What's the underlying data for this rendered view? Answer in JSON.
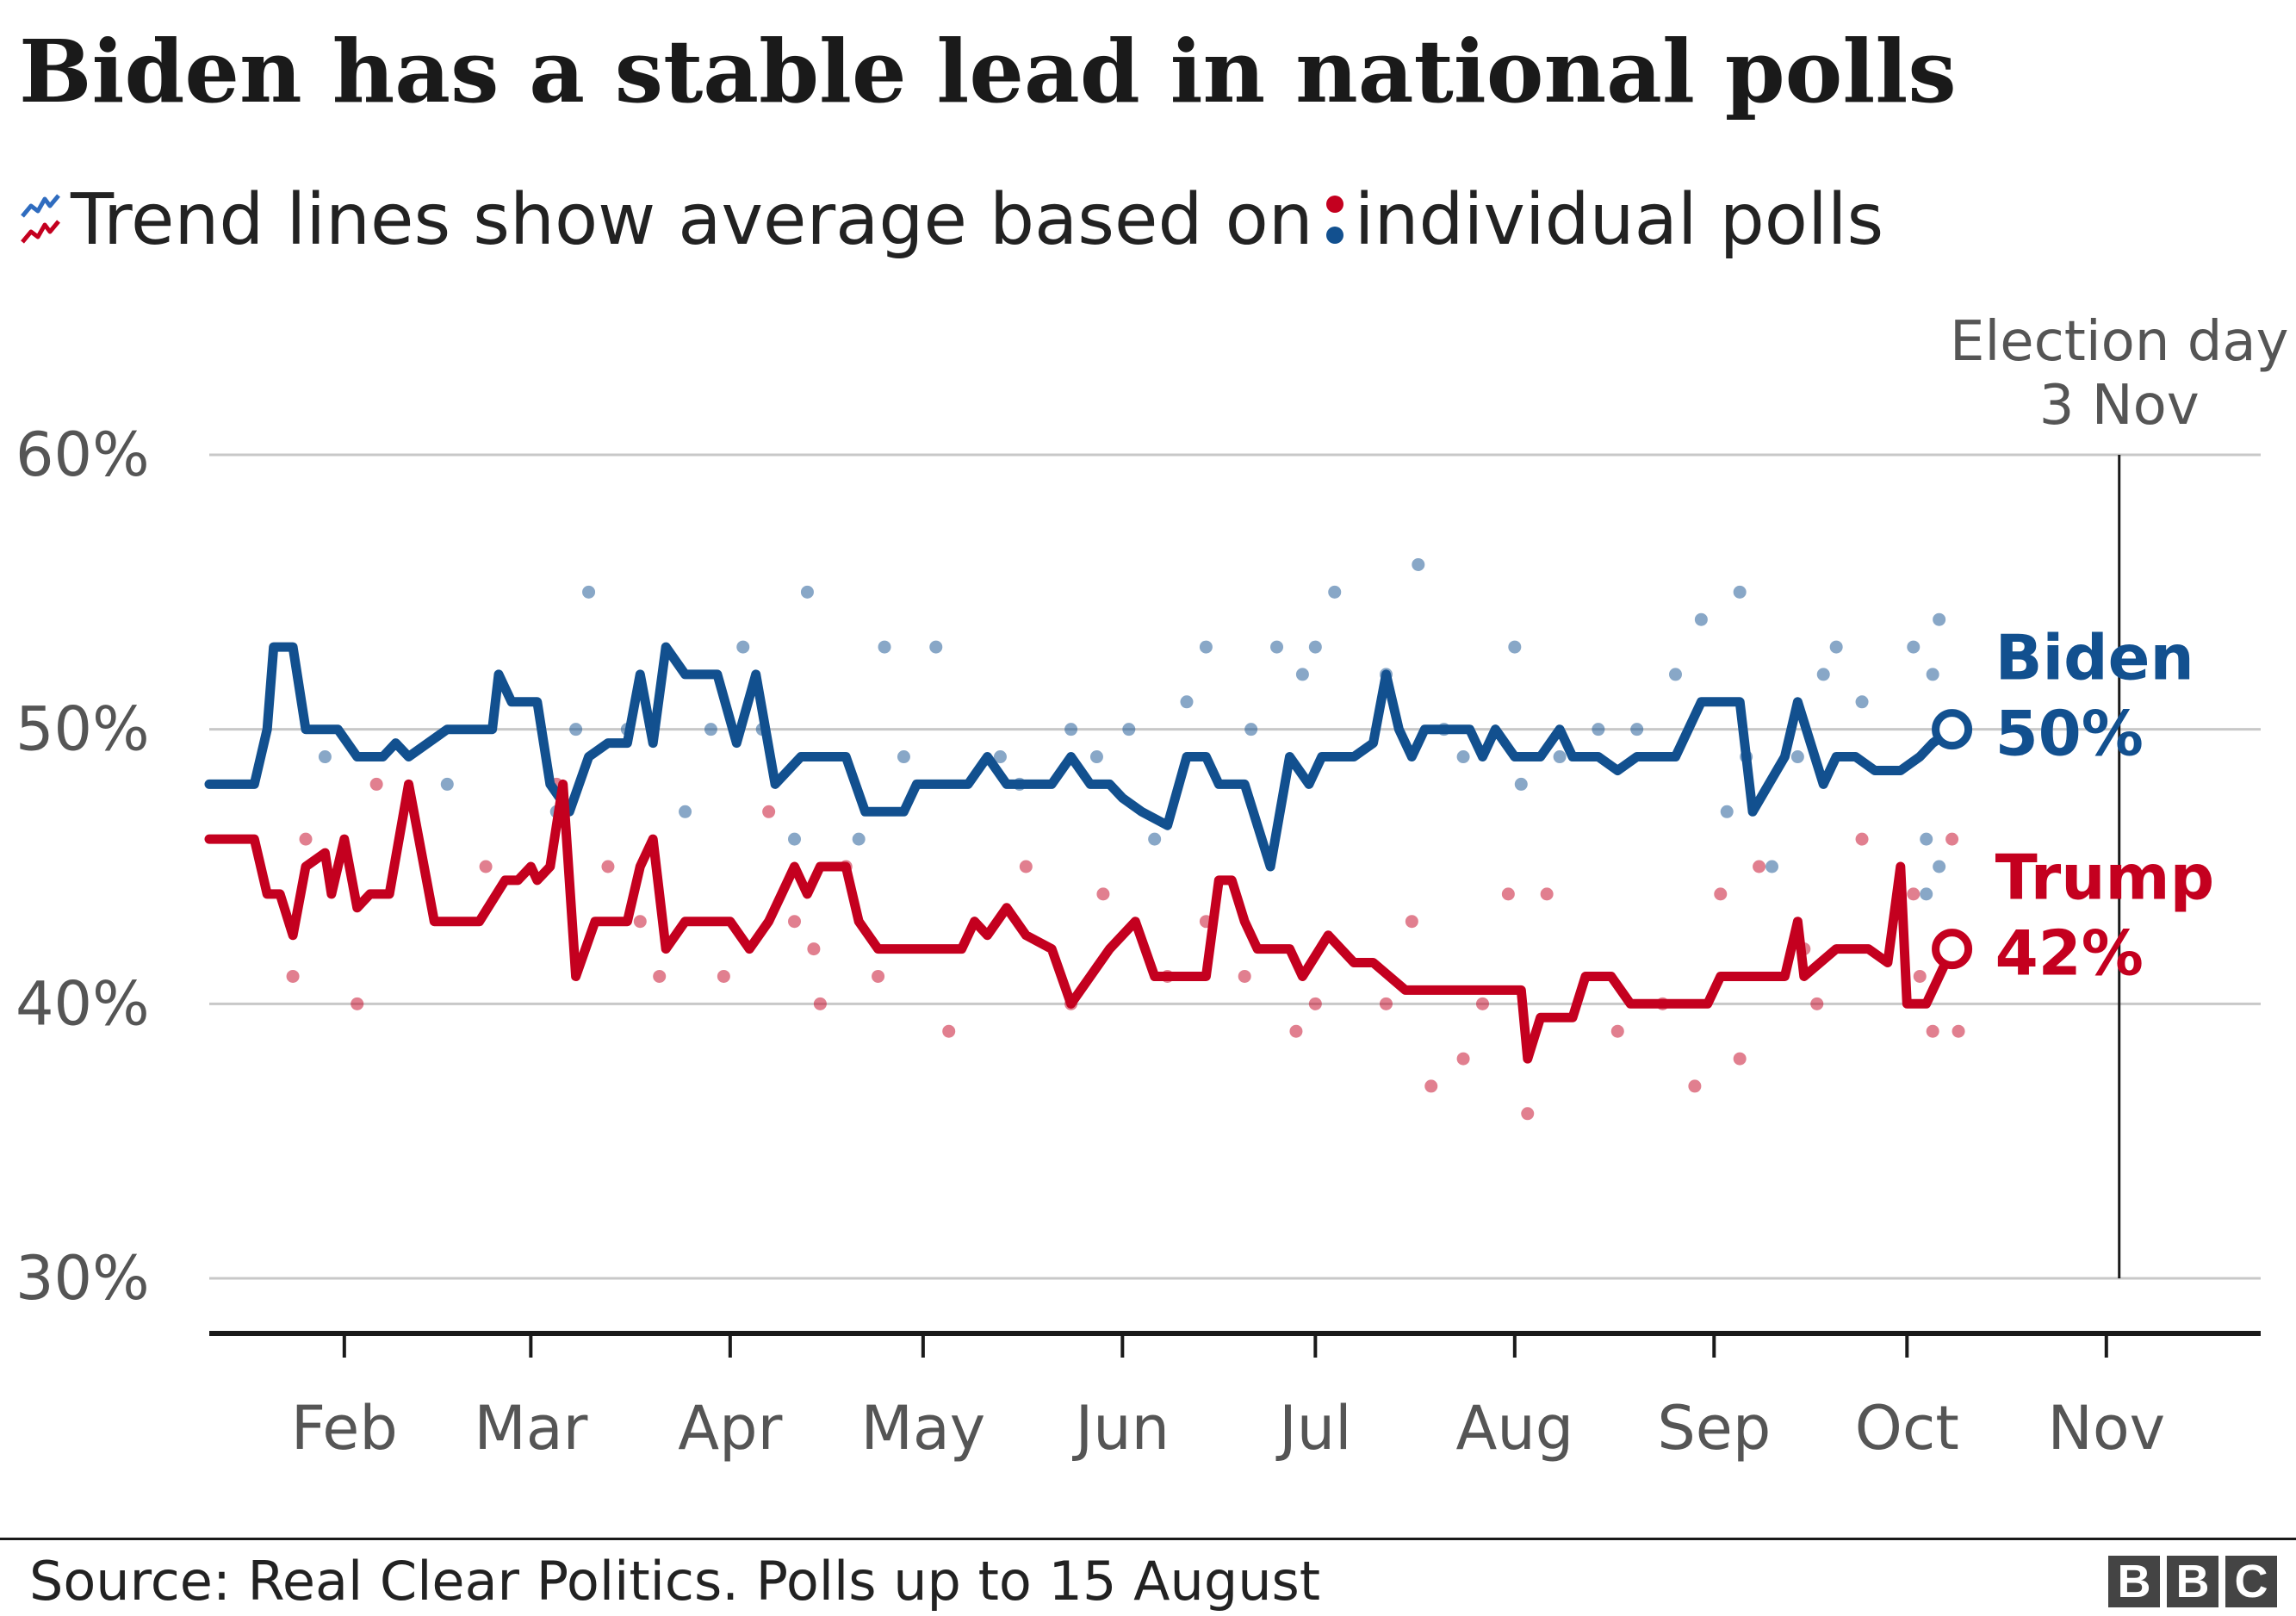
{
  "title": "Biden has a stable lead in national polls",
  "subtitle": {
    "trend_text": "Trend lines show average based on",
    "polls_text": "individual polls",
    "trend_icon": "trend-lines-icon",
    "dots_icon": "poll-dots-icon"
  },
  "footer": {
    "source": "Source: Real Clear Politics. Polls up to 15 August",
    "logo": [
      "B",
      "B",
      "C"
    ]
  },
  "colors": {
    "biden": "#12508f",
    "trump": "#c4001f",
    "grid": "#c8c8c8",
    "axis": "#1a1a1a",
    "label": "#555555"
  },
  "chart_data": {
    "type": "line",
    "ylim": [
      30,
      60
    ],
    "yticks": [
      30,
      40,
      50,
      60
    ],
    "ytick_labels": [
      "30%",
      "40%",
      "50%",
      "60%"
    ],
    "month_ticks": [
      {
        "date": "2020-02-01",
        "label": "Feb"
      },
      {
        "date": "2020-03-01",
        "label": "Mar"
      },
      {
        "date": "2020-04-01",
        "label": "Apr"
      },
      {
        "date": "2020-05-01",
        "label": "May"
      },
      {
        "date": "2020-06-01",
        "label": "Jun"
      },
      {
        "date": "2020-07-01",
        "label": "Jul"
      },
      {
        "date": "2020-08-01",
        "label": "Aug"
      },
      {
        "date": "2020-09-01",
        "label": "Sep"
      },
      {
        "date": "2020-10-01",
        "label": "Oct"
      },
      {
        "date": "2020-11-01",
        "label": "Nov"
      }
    ],
    "xlim": [
      "2020-01-11",
      "2020-11-25"
    ],
    "annotation": {
      "date": "2020-11-03",
      "label_line1": "Election day",
      "label_line2": "3 Nov"
    },
    "grid": true,
    "series": [
      {
        "name": "Biden",
        "end_label": "50%",
        "color": "#12508f",
        "trend": [
          [
            "2020-01-11",
            48
          ],
          [
            "2020-01-18",
            48
          ],
          [
            "2020-01-20",
            50
          ],
          [
            "2020-01-21",
            53
          ],
          [
            "2020-01-24",
            53
          ],
          [
            "2020-01-26",
            50
          ],
          [
            "2020-01-31",
            50
          ],
          [
            "2020-02-03",
            49
          ],
          [
            "2020-02-07",
            49
          ],
          [
            "2020-02-09",
            49.5
          ],
          [
            "2020-02-11",
            49
          ],
          [
            "2020-02-17",
            50
          ],
          [
            "2020-02-24",
            50
          ],
          [
            "2020-02-25",
            52
          ],
          [
            "2020-02-27",
            51
          ],
          [
            "2020-03-02",
            51
          ],
          [
            "2020-03-04",
            48
          ],
          [
            "2020-03-07",
            47
          ],
          [
            "2020-03-10",
            49
          ],
          [
            "2020-03-13",
            49.5
          ],
          [
            "2020-03-16",
            49.5
          ],
          [
            "2020-03-18",
            52
          ],
          [
            "2020-03-20",
            49.5
          ],
          [
            "2020-03-22",
            53
          ],
          [
            "2020-03-25",
            52
          ],
          [
            "2020-03-30",
            52
          ],
          [
            "2020-04-02",
            49.5
          ],
          [
            "2020-04-05",
            52
          ],
          [
            "2020-04-08",
            48
          ],
          [
            "2020-04-12",
            49
          ],
          [
            "2020-04-19",
            49
          ],
          [
            "2020-04-22",
            47
          ],
          [
            "2020-04-28",
            47
          ],
          [
            "2020-04-30",
            48
          ],
          [
            "2020-05-03",
            48
          ],
          [
            "2020-05-08",
            48
          ],
          [
            "2020-05-11",
            49
          ],
          [
            "2020-05-14",
            48
          ],
          [
            "2020-05-21",
            48
          ],
          [
            "2020-05-24",
            49
          ],
          [
            "2020-05-27",
            48
          ],
          [
            "2020-05-30",
            48
          ],
          [
            "2020-06-01",
            47.5
          ],
          [
            "2020-06-04",
            47
          ],
          [
            "2020-06-08",
            46.5
          ],
          [
            "2020-06-11",
            49
          ],
          [
            "2020-06-14",
            49
          ],
          [
            "2020-06-16",
            48
          ],
          [
            "2020-06-20",
            48
          ],
          [
            "2020-06-24",
            45
          ],
          [
            "2020-06-27",
            49
          ],
          [
            "2020-06-30",
            48
          ],
          [
            "2020-07-02",
            49
          ],
          [
            "2020-07-07",
            49
          ],
          [
            "2020-07-10",
            49.5
          ],
          [
            "2020-07-12",
            52
          ],
          [
            "2020-07-14",
            50
          ],
          [
            "2020-07-16",
            49
          ],
          [
            "2020-07-18",
            50
          ],
          [
            "2020-07-25",
            50
          ],
          [
            "2020-07-27",
            49
          ],
          [
            "2020-07-29",
            50
          ],
          [
            "2020-08-01",
            49
          ],
          [
            "2020-08-05",
            49
          ],
          [
            "2020-08-08",
            50
          ],
          [
            "2020-08-10",
            49
          ],
          [
            "2020-08-14",
            49
          ],
          [
            "2020-08-17",
            48.5
          ],
          [
            "2020-08-20",
            49
          ],
          [
            "2020-08-24",
            49
          ],
          [
            "2020-08-26",
            49
          ],
          [
            "2020-08-30",
            51
          ],
          [
            "2020-09-05",
            51
          ],
          [
            "2020-09-07",
            47
          ],
          [
            "2020-09-12",
            49
          ],
          [
            "2020-09-14",
            51
          ],
          [
            "2020-09-18",
            48
          ],
          [
            "2020-09-20",
            49
          ],
          [
            "2020-09-23",
            49
          ],
          [
            "2020-09-26",
            48.5
          ],
          [
            "2020-09-30",
            48.5
          ],
          [
            "2020-10-03",
            49
          ],
          [
            "2020-10-05",
            49.5
          ],
          [
            "2020-10-08",
            50
          ]
        ],
        "polls": [
          [
            "2020-01-29",
            49
          ],
          [
            "2020-02-17",
            48
          ],
          [
            "2020-03-05",
            47
          ],
          [
            "2020-03-08",
            50
          ],
          [
            "2020-03-10",
            55
          ],
          [
            "2020-03-16",
            50
          ],
          [
            "2020-03-25",
            47
          ],
          [
            "2020-03-29",
            50
          ],
          [
            "2020-04-03",
            53
          ],
          [
            "2020-04-06",
            50
          ],
          [
            "2020-04-11",
            46
          ],
          [
            "2020-04-13",
            55
          ],
          [
            "2020-04-21",
            46
          ],
          [
            "2020-04-25",
            53
          ],
          [
            "2020-04-28",
            49
          ],
          [
            "2020-05-03",
            53
          ],
          [
            "2020-05-13",
            49
          ],
          [
            "2020-05-16",
            48
          ],
          [
            "2020-05-24",
            50
          ],
          [
            "2020-05-28",
            49
          ],
          [
            "2020-06-02",
            50
          ],
          [
            "2020-06-06",
            46
          ],
          [
            "2020-06-11",
            51
          ],
          [
            "2020-06-14",
            53
          ],
          [
            "2020-06-21",
            50
          ],
          [
            "2020-06-25",
            53
          ],
          [
            "2020-06-29",
            52
          ],
          [
            "2020-07-01",
            53
          ],
          [
            "2020-07-04",
            55
          ],
          [
            "2020-07-12",
            52
          ],
          [
            "2020-07-17",
            56
          ],
          [
            "2020-07-21",
            50
          ],
          [
            "2020-07-24",
            49
          ],
          [
            "2020-08-01",
            53
          ],
          [
            "2020-08-02",
            48
          ],
          [
            "2020-08-08",
            49
          ],
          [
            "2020-08-14",
            50
          ],
          [
            "2020-08-20",
            50
          ],
          [
            "2020-08-26",
            52
          ],
          [
            "2020-08-30",
            54
          ],
          [
            "2020-09-03",
            47
          ],
          [
            "2020-09-05",
            55
          ],
          [
            "2020-09-06",
            49
          ],
          [
            "2020-09-10",
            45
          ],
          [
            "2020-09-14",
            49
          ],
          [
            "2020-09-18",
            52
          ],
          [
            "2020-09-20",
            53
          ],
          [
            "2020-09-24",
            51
          ],
          [
            "2020-10-02",
            53
          ],
          [
            "2020-10-04",
            44
          ],
          [
            "2020-10-05",
            52
          ],
          [
            "2020-10-06",
            54
          ],
          [
            "2020-10-04",
            46
          ],
          [
            "2020-10-06",
            45
          ]
        ]
      },
      {
        "name": "Trump",
        "end_label": "42%",
        "color": "#c4001f",
        "trend": [
          [
            "2020-01-11",
            46
          ],
          [
            "2020-01-18",
            46
          ],
          [
            "2020-01-20",
            44
          ],
          [
            "2020-01-22",
            44
          ],
          [
            "2020-01-24",
            42.5
          ],
          [
            "2020-01-26",
            45
          ],
          [
            "2020-01-29",
            45.5
          ],
          [
            "2020-01-30",
            44
          ],
          [
            "2020-02-01",
            46
          ],
          [
            "2020-02-03",
            43.5
          ],
          [
            "2020-02-05",
            44
          ],
          [
            "2020-02-08",
            44
          ],
          [
            "2020-02-11",
            48
          ],
          [
            "2020-02-15",
            43
          ],
          [
            "2020-02-22",
            43
          ],
          [
            "2020-02-26",
            44.5
          ],
          [
            "2020-02-28",
            44.5
          ],
          [
            "2020-03-01",
            45
          ],
          [
            "2020-03-02",
            44.5
          ],
          [
            "2020-03-04",
            45
          ],
          [
            "2020-03-06",
            48
          ],
          [
            "2020-03-08",
            41
          ],
          [
            "2020-03-11",
            43
          ],
          [
            "2020-03-16",
            43
          ],
          [
            "2020-03-18",
            45
          ],
          [
            "2020-03-20",
            46
          ],
          [
            "2020-03-22",
            42
          ],
          [
            "2020-03-25",
            43
          ],
          [
            "2020-04-01",
            43
          ],
          [
            "2020-04-04",
            42
          ],
          [
            "2020-04-07",
            43
          ],
          [
            "2020-04-09",
            44
          ],
          [
            "2020-04-11",
            45
          ],
          [
            "2020-04-13",
            44
          ],
          [
            "2020-04-15",
            45
          ],
          [
            "2020-04-19",
            45
          ],
          [
            "2020-04-21",
            43
          ],
          [
            "2020-04-24",
            42
          ],
          [
            "2020-05-01",
            42
          ],
          [
            "2020-05-07",
            42
          ],
          [
            "2020-05-09",
            43
          ],
          [
            "2020-05-11",
            42.5
          ],
          [
            "2020-05-14",
            43.5
          ],
          [
            "2020-05-17",
            42.5
          ],
          [
            "2020-05-21",
            42
          ],
          [
            "2020-05-24",
            40
          ],
          [
            "2020-05-27",
            41
          ],
          [
            "2020-05-30",
            42
          ],
          [
            "2020-06-03",
            43
          ],
          [
            "2020-06-06",
            41
          ],
          [
            "2020-06-09",
            41
          ],
          [
            "2020-06-14",
            41
          ],
          [
            "2020-06-16",
            44.5
          ],
          [
            "2020-06-18",
            44.5
          ],
          [
            "2020-06-20",
            43
          ],
          [
            "2020-06-22",
            42
          ],
          [
            "2020-06-27",
            42
          ],
          [
            "2020-06-29",
            41
          ],
          [
            "2020-07-03",
            42.5
          ],
          [
            "2020-07-07",
            41.5
          ],
          [
            "2020-07-10",
            41.5
          ],
          [
            "2020-07-15",
            40.5
          ],
          [
            "2020-07-26",
            40.5
          ],
          [
            "2020-08-02",
            40.5
          ],
          [
            "2020-08-03",
            38
          ],
          [
            "2020-08-05",
            39.5
          ],
          [
            "2020-08-10",
            39.5
          ],
          [
            "2020-08-12",
            41
          ],
          [
            "2020-08-16",
            41
          ],
          [
            "2020-08-19",
            40
          ],
          [
            "2020-08-24",
            40
          ],
          [
            "2020-08-31",
            40
          ],
          [
            "2020-09-02",
            41
          ],
          [
            "2020-09-08",
            41
          ],
          [
            "2020-09-12",
            41
          ],
          [
            "2020-09-14",
            43
          ],
          [
            "2020-09-15",
            41
          ],
          [
            "2020-09-20",
            42
          ],
          [
            "2020-09-25",
            42
          ],
          [
            "2020-09-28",
            41.5
          ],
          [
            "2020-09-30",
            45
          ],
          [
            "2020-10-01",
            40
          ],
          [
            "2020-10-04",
            40
          ],
          [
            "2020-10-08",
            42
          ]
        ],
        "polls": [
          [
            "2020-01-24",
            41
          ],
          [
            "2020-01-26",
            46
          ],
          [
            "2020-02-03",
            40
          ],
          [
            "2020-02-06",
            48
          ],
          [
            "2020-02-23",
            45
          ],
          [
            "2020-03-05",
            48
          ],
          [
            "2020-03-13",
            45
          ],
          [
            "2020-03-18",
            43
          ],
          [
            "2020-03-21",
            41
          ],
          [
            "2020-03-31",
            41
          ],
          [
            "2020-04-07",
            47
          ],
          [
            "2020-04-11",
            43
          ],
          [
            "2020-04-14",
            42
          ],
          [
            "2020-04-15",
            40
          ],
          [
            "2020-04-19",
            45
          ],
          [
            "2020-04-24",
            41
          ],
          [
            "2020-05-05",
            39
          ],
          [
            "2020-05-17",
            45
          ],
          [
            "2020-05-24",
            40
          ],
          [
            "2020-05-29",
            44
          ],
          [
            "2020-06-08",
            41
          ],
          [
            "2020-06-14",
            43
          ],
          [
            "2020-06-20",
            41
          ],
          [
            "2020-06-28",
            39
          ],
          [
            "2020-07-01",
            40
          ],
          [
            "2020-07-12",
            40
          ],
          [
            "2020-07-16",
            43
          ],
          [
            "2020-07-19",
            37
          ],
          [
            "2020-07-24",
            38
          ],
          [
            "2020-07-27",
            40
          ],
          [
            "2020-07-31",
            44
          ],
          [
            "2020-08-03",
            36
          ],
          [
            "2020-08-06",
            44
          ],
          [
            "2020-08-17",
            39
          ],
          [
            "2020-08-24",
            40
          ],
          [
            "2020-08-29",
            37
          ],
          [
            "2020-09-02",
            44
          ],
          [
            "2020-09-05",
            38
          ],
          [
            "2020-09-08",
            45
          ],
          [
            "2020-09-15",
            42
          ],
          [
            "2020-09-17",
            40
          ],
          [
            "2020-09-24",
            46
          ],
          [
            "2020-10-02",
            44
          ],
          [
            "2020-10-03",
            41
          ],
          [
            "2020-10-05",
            39
          ],
          [
            "2020-10-08",
            46
          ],
          [
            "2020-10-09",
            39
          ]
        ]
      }
    ]
  }
}
